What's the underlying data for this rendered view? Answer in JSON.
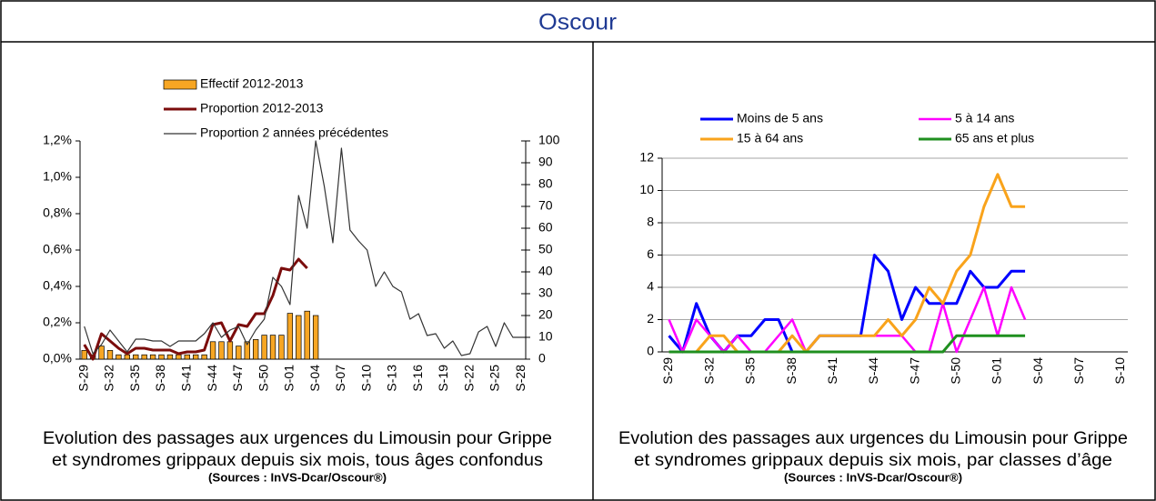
{
  "header": {
    "title": "Oscour"
  },
  "chart_data": [
    {
      "type": "combo",
      "categories": [
        "S-29",
        null,
        null,
        "S-32",
        null,
        null,
        "S-35",
        null,
        null,
        "S-38",
        null,
        null,
        "S-41",
        null,
        null,
        "S-44",
        null,
        null,
        "S-47",
        null,
        null,
        "S-50",
        null,
        null,
        "S-01",
        null,
        null,
        "S-04",
        null,
        null,
        "S-07",
        null,
        null,
        "S-10",
        null,
        null,
        "S-13",
        null,
        null,
        "S-16",
        null,
        null,
        "S-19",
        null,
        null,
        "S-22",
        null,
        null,
        "S-25",
        null,
        null,
        "S-28"
      ],
      "series": [
        {
          "name": "Effectif 2012-2013",
          "type": "bar",
          "axis": "y2",
          "color": "#f7a623",
          "values": [
            4,
            2,
            6,
            4,
            2,
            2,
            2,
            2,
            2,
            2,
            2,
            2,
            2,
            2,
            2,
            8,
            8,
            8,
            6,
            8,
            9,
            11,
            11,
            11,
            21,
            20,
            22,
            20,
            null,
            null,
            null,
            null,
            null,
            null,
            null,
            null,
            null,
            null,
            null,
            null,
            null,
            null,
            null,
            null,
            null,
            null,
            null,
            null,
            null,
            null,
            null,
            null
          ]
        },
        {
          "name": "Proportion 2012-2013",
          "type": "line",
          "color": "#7b0c0c",
          "values": [
            0.08,
            0.0,
            0.14,
            0.1,
            0.06,
            0.03,
            0.06,
            0.06,
            0.05,
            0.05,
            0.05,
            0.03,
            0.04,
            0.04,
            0.05,
            0.19,
            0.2,
            0.1,
            0.19,
            0.18,
            0.25,
            0.25,
            0.35,
            0.5,
            0.49,
            0.55,
            0.5,
            null,
            null,
            null,
            null,
            null,
            null,
            null,
            null,
            null,
            null,
            null,
            null,
            null,
            null,
            null,
            null,
            null,
            null,
            null,
            null,
            null,
            null,
            null,
            null,
            null
          ]
        },
        {
          "name": "Proportion 2 années précédentes",
          "type": "line",
          "color": "#333333",
          "values": [
            0.18,
            0.03,
            0.08,
            0.16,
            0.1,
            0.04,
            0.11,
            0.11,
            0.1,
            0.1,
            0.07,
            0.1,
            0.1,
            0.1,
            0.14,
            0.2,
            0.12,
            0.16,
            0.18,
            0.08,
            0.16,
            0.22,
            0.45,
            0.4,
            0.3,
            0.9,
            0.72,
            1.2,
            0.95,
            0.64,
            1.16,
            0.71,
            0.65,
            0.6,
            0.4,
            0.48,
            0.4,
            0.37,
            0.22,
            0.25,
            0.13,
            0.14,
            0.06,
            0.1,
            0.02,
            0.03,
            0.15,
            0.18,
            0.07,
            0.2,
            0.12,
            0.12
          ]
        }
      ],
      "ylim": [
        0,
        1.2
      ],
      "yticks": [
        {
          "value": 0,
          "label": "0,0%"
        },
        {
          "value": 0.2,
          "label": "0,2%"
        },
        {
          "value": 0.4,
          "label": "0,4%"
        },
        {
          "value": 0.6,
          "label": "0,6%"
        },
        {
          "value": 0.8,
          "label": "0,8%"
        },
        {
          "value": 1.0,
          "label": "1,0%"
        },
        {
          "value": 1.2,
          "label": "1,2%"
        }
      ],
      "y2lim": [
        0,
        100
      ],
      "y2ticks": [
        0,
        10,
        20,
        30,
        40,
        50,
        60,
        70,
        80,
        90,
        100
      ],
      "grid": false,
      "legend": "top",
      "caption": [
        "Evolution des passages aux urgences  du Limousin pour Grippe",
        "et syndromes grippaux  depuis six mois, tous âges confondus"
      ],
      "source": "(Sources : InVS-Dcar/Oscour®)"
    },
    {
      "type": "line",
      "categories": [
        "S-29",
        null,
        null,
        "S-32",
        null,
        null,
        "S-35",
        null,
        null,
        "S-38",
        null,
        null,
        "S-41",
        null,
        null,
        "S-44",
        null,
        null,
        "S-47",
        null,
        null,
        "S-50",
        null,
        null,
        "S-01",
        null,
        null,
        "S-04",
        null,
        null,
        "S-07",
        null,
        null,
        "S-10"
      ],
      "series": [
        {
          "name": "Moins de 5 ans",
          "color": "#0000ff",
          "values": [
            1,
            0,
            3,
            1,
            0,
            1,
            1,
            2,
            2,
            0,
            0,
            1,
            1,
            1,
            1,
            6,
            5,
            2,
            4,
            3,
            3,
            3,
            5,
            4,
            4,
            5,
            5,
            null,
            null,
            null,
            null,
            null,
            null,
            null
          ]
        },
        {
          "name": "5 à 14 ans",
          "color": "#ff00ff",
          "values": [
            2,
            0,
            2,
            1,
            0,
            1,
            0,
            0,
            1,
            2,
            0,
            1,
            1,
            1,
            1,
            1,
            1,
            1,
            0,
            0,
            3,
            0,
            2,
            4,
            1,
            4,
            2,
            null,
            null,
            null,
            null,
            null,
            null,
            null
          ]
        },
        {
          "name": "15 à 64 ans",
          "color": "#f9a31b",
          "values": [
            0,
            0,
            0,
            1,
            1,
            0,
            0,
            0,
            0,
            1,
            0,
            1,
            1,
            1,
            1,
            1,
            2,
            1,
            2,
            4,
            3,
            5,
            6,
            9,
            11,
            9,
            9,
            null,
            null,
            null,
            null,
            null,
            null,
            null
          ]
        },
        {
          "name": "65 ans et plus",
          "color": "#1f8f1f",
          "values": [
            0,
            0,
            0,
            0,
            0,
            0,
            0,
            0,
            0,
            0,
            0,
            0,
            0,
            0,
            0,
            0,
            0,
            0,
            0,
            0,
            0,
            1,
            1,
            1,
            1,
            1,
            1,
            null,
            null,
            null,
            null,
            null,
            null,
            null
          ]
        }
      ],
      "ylim": [
        0,
        12
      ],
      "yticks": [
        0,
        2,
        4,
        6,
        8,
        10,
        12
      ],
      "grid": true,
      "legend": "top",
      "caption": [
        "Evolution des passages aux urgences du Limousin pour Grippe",
        "et syndromes grippaux  depuis six mois, par classes d’âge"
      ],
      "source": "(Sources : InVS-Dcar/Oscour®)"
    }
  ]
}
